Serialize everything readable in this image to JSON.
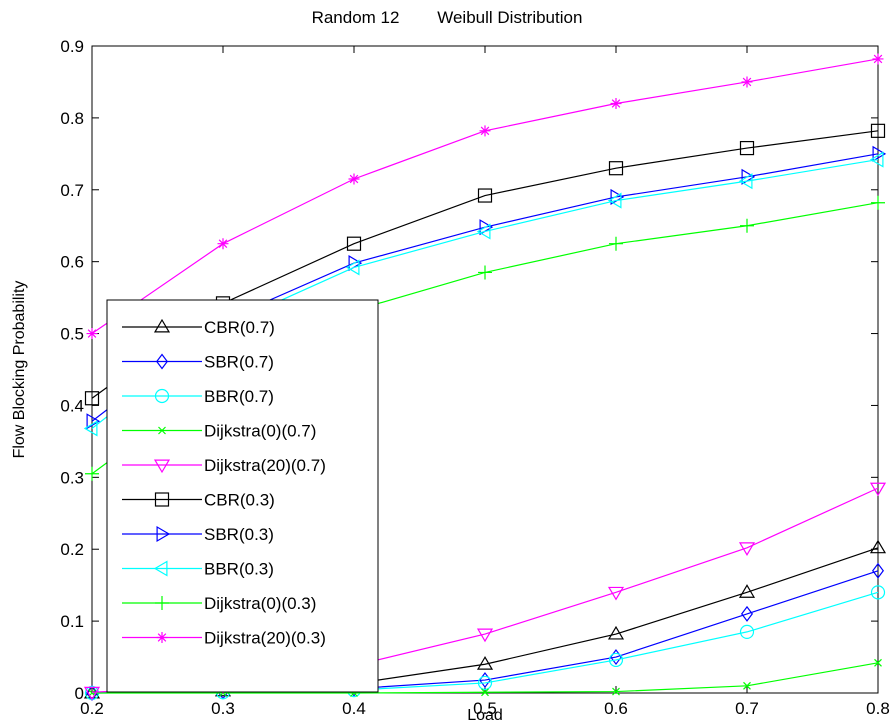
{
  "chart_data": {
    "type": "line",
    "title": "Random 12        Weibull Distribution",
    "xlabel": "Load",
    "ylabel": "Flow Blocking Probability",
    "xlim": [
      0.2,
      0.8
    ],
    "ylim": [
      0,
      0.9
    ],
    "xticks": [
      "0.2",
      "0.3",
      "0.4",
      "0.5",
      "0.6",
      "0.7",
      "0.8"
    ],
    "yticks": [
      "0",
      "0.1",
      "0.2",
      "0.3",
      "0.4",
      "0.5",
      "0.6",
      "0.7",
      "0.8",
      "0.9"
    ],
    "grid": false,
    "legend_position": "lower-left",
    "x": [
      0.2,
      0.3,
      0.4,
      0.5,
      0.6,
      0.7,
      0.8
    ],
    "series": [
      {
        "name": "CBR(0.7)",
        "color": "#000000",
        "marker": "triangle-up",
        "values": [
          0.0,
          0.003,
          0.013,
          0.04,
          0.082,
          0.14,
          0.202
        ]
      },
      {
        "name": "SBR(0.7)",
        "color": "#0000ff",
        "marker": "diamond",
        "values": [
          0.0,
          0.002,
          0.006,
          0.018,
          0.05,
          0.11,
          0.17
        ]
      },
      {
        "name": "BBR(0.7)",
        "color": "#00ffff",
        "marker": "circle",
        "values": [
          0.0,
          0.001,
          0.004,
          0.014,
          0.046,
          0.085,
          0.14
        ]
      },
      {
        "name": "Dijkstra(0)(0.7)",
        "color": "#00ff00",
        "marker": "x",
        "values": [
          0.0,
          0.0,
          0.0,
          0.001,
          0.002,
          0.01,
          0.042
        ]
      },
      {
        "name": "Dijkstra(20)(0.7)",
        "color": "#ff00ff",
        "marker": "triangle-down",
        "values": [
          0.001,
          0.01,
          0.038,
          0.082,
          0.14,
          0.202,
          0.285
        ]
      },
      {
        "name": "CBR(0.3)",
        "color": "#000000",
        "marker": "square",
        "values": [
          0.41,
          0.542,
          0.625,
          0.692,
          0.73,
          0.758,
          0.782
        ]
      },
      {
        "name": "SBR(0.3)",
        "color": "#0000ff",
        "marker": "triangle-right",
        "values": [
          0.378,
          0.518,
          0.598,
          0.648,
          0.69,
          0.718,
          0.75
        ]
      },
      {
        "name": "BBR(0.3)",
        "color": "#00ffff",
        "marker": "triangle-left",
        "values": [
          0.368,
          0.51,
          0.592,
          0.642,
          0.685,
          0.712,
          0.742
        ]
      },
      {
        "name": "Dijkstra(0)(0.3)",
        "color": "#00ff00",
        "marker": "plus",
        "values": [
          0.305,
          0.44,
          0.532,
          0.585,
          0.625,
          0.65,
          0.682
        ]
      },
      {
        "name": "Dijkstra(20)(0.3)",
        "color": "#ff00ff",
        "marker": "star",
        "values": [
          0.5,
          0.625,
          0.715,
          0.782,
          0.82,
          0.85,
          0.882
        ]
      }
    ]
  }
}
